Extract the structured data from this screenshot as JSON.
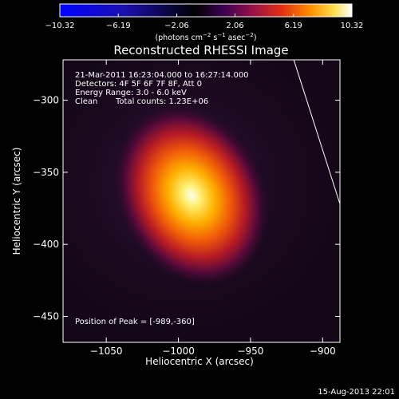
{
  "chart_data": {
    "type": "heatmap",
    "title": "Reconstructed RHESSI Image",
    "xlabel": "Heliocentric X (arcsec)",
    "ylabel": "Heliocentric Y (arcsec)",
    "xlim": [
      -1080,
      -888
    ],
    "ylim": [
      -468,
      -272
    ],
    "x_ticks": [
      -1050,
      -1000,
      -950,
      -900
    ],
    "x_tick_labels": [
      "−1050",
      "−1000",
      "−950",
      "−900"
    ],
    "y_ticks": [
      -300,
      -350,
      -400,
      -450
    ],
    "y_tick_labels": [
      "−300",
      "−350",
      "−400",
      "−450"
    ],
    "colorbar": {
      "range": [
        -10.32,
        10.32
      ],
      "ticks": [
        -10.32,
        -6.19,
        -2.06,
        2.06,
        6.19,
        10.32
      ],
      "tick_labels": [
        "−10.32",
        "−6.19",
        "−2.06",
        "2.06",
        "6.19",
        "10.32"
      ],
      "units_text": "(photons cm",
      "units_exp1": "−2",
      "units_mid": " s",
      "units_exp2": "−1",
      "units_mid2": " asec",
      "units_exp3": "−2",
      "units_end": ")"
    },
    "source": {
      "x": -989,
      "y": -360,
      "peak": 10.32
    },
    "limb_line": [
      [
        -920,
        -272
      ],
      [
        -888,
        -372
      ]
    ],
    "colors": {
      "bar_low": "#0000ff",
      "bar_mid": "#000000",
      "bar_high": "#ffffff",
      "limb": "#ffffff"
    },
    "annotations": {
      "time": "21-Mar-2011 16:23:04.000 to 16:27:14.000",
      "detectors": "Detectors: 4F 5F 6F 7F 8F, Att 0",
      "energy": "Energy Range: 3.0 - 6.0 keV",
      "method": "Clean",
      "counts": "Total counts: 1.23E+06",
      "peak": "Position of Peak = [-989,-360]"
    },
    "footer_date": "15-Aug-2013 22:01"
  }
}
